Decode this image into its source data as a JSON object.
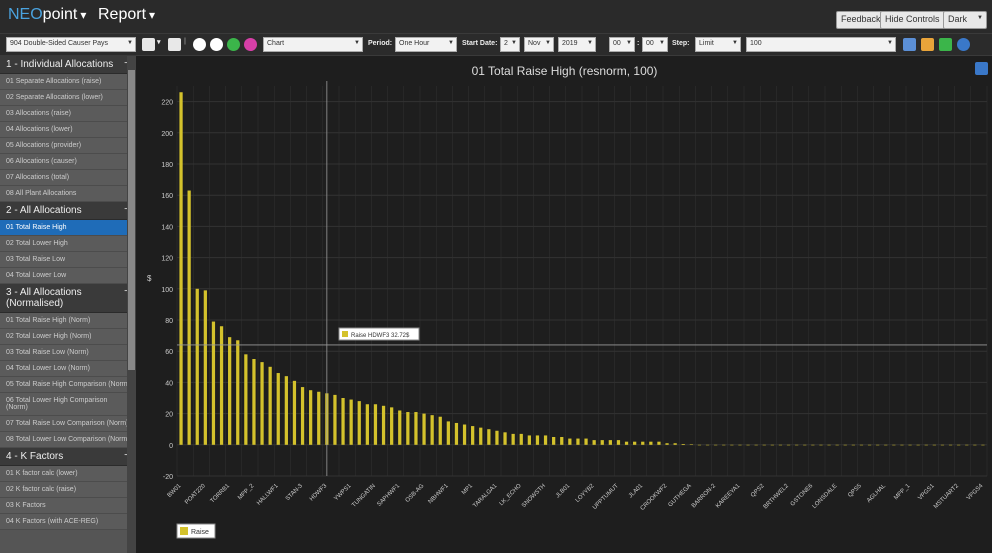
{
  "app": {
    "brand_prefix": "NEO",
    "brand_suffix": "point",
    "menu": "Report"
  },
  "topbar": {
    "feedback": "Feedback",
    "hide_controls": "Hide Controls",
    "theme": "Dark"
  },
  "toolbar": {
    "report_select": "904 Double-Sided Causer Pays",
    "view_select": "Chart",
    "period_label": "Period:",
    "period_value": "One Hour",
    "start_label": "Start Date:",
    "day": "2",
    "month": "Nov",
    "year": "2019",
    "hour": "00",
    "minute": "00",
    "step_label": "Step:",
    "step_value": "Limit",
    "limit_value": "100"
  },
  "sidebar": {
    "sections": [
      {
        "title": "1 - Individual Allocations",
        "items": [
          "01 Separate Allocations (raise)",
          "02 Separate Allocations (lower)",
          "03 Allocations (raise)",
          "04 Allocations (lower)",
          "05 Allocations (provider)",
          "06 Allocations (causer)",
          "07 Allocations (total)",
          "08 All Plant Allocations"
        ]
      },
      {
        "title": "2 - All Allocations",
        "items": [
          "01 Total Raise High",
          "02 Total Lower High",
          "03 Total Raise Low",
          "04 Total Lower Low"
        ]
      },
      {
        "title": "3 - All Allocations (Normalised)",
        "items": [
          "01 Total Raise High (Norm)",
          "02 Total Lower High (Norm)",
          "03 Total Raise Low (Norm)",
          "04 Total Lower Low (Norm)",
          "05 Total Raise High Comparison (Norm)",
          "06 Total Lower High Comparison (Norm)",
          "07 Total Raise Low Comparison (Norm)",
          "08 Total Lower Low Comparison (Norm)"
        ]
      },
      {
        "title": "4 - K Factors",
        "items": [
          "01 K factor calc (lower)",
          "02 K factor calc (raise)",
          "03 K Factors",
          "04 K Factors (with ACE-REG)"
        ]
      }
    ],
    "active_item": "01 Total Raise High"
  },
  "colors": {
    "bar": "#d4c22c",
    "accent": "#1f6cb8",
    "grid": "#333333"
  },
  "chart_data": {
    "type": "bar",
    "title": "01 Total Raise High (resnorm, 100)",
    "ylabel": "$",
    "ylim": [
      -20,
      230
    ],
    "yticks": [
      -20,
      0,
      20,
      40,
      60,
      80,
      100,
      120,
      140,
      160,
      180,
      200,
      220
    ],
    "legend": "Raise",
    "tooltip": {
      "series": "Raise",
      "category": "HDWF3",
      "value": "32.72$"
    },
    "categories_labeled": [
      "BW01",
      "POAT220",
      "TORRB1",
      "MPP_2",
      "HALLWF1",
      "STAN-3",
      "HDWF3",
      "YWPS1",
      "TUNGATIN",
      "SAPHWF1",
      "OSB-AG",
      "NBHWF1",
      "MP1",
      "TARALGA1",
      "LK_ECHO",
      "SNOWSTH",
      "JLB01",
      "LOYYB2",
      "UPPTUMUT",
      "JLA01",
      "CROOKWF2",
      "GUTHEGA",
      "BARRON-2",
      "KAREEYA1",
      "QPS2",
      "BRTHWEL2",
      "GSTONE6",
      "LONSDALE",
      "QPS5",
      "AGLHAL",
      "MPP_1",
      "VPGS1",
      "MSTUART2",
      "VPGS4"
    ],
    "values": [
      226,
      163,
      100,
      99,
      79,
      76,
      69,
      67,
      58,
      55,
      53,
      50,
      46,
      44,
      41,
      37,
      35,
      34,
      33,
      32,
      30,
      29,
      28,
      26,
      26,
      25,
      24,
      22,
      21,
      21,
      20,
      19,
      18,
      15,
      14,
      13,
      12,
      11,
      10,
      9,
      8,
      7,
      7,
      6,
      6,
      6,
      5,
      5,
      4,
      4,
      4,
      3,
      3,
      3,
      3,
      2,
      2,
      2,
      2,
      2,
      1,
      1,
      0.5,
      0.3,
      0,
      0,
      0,
      0,
      0,
      0,
      0,
      0,
      0,
      0,
      0,
      0,
      0,
      0,
      0,
      0,
      0,
      0,
      0,
      0,
      0,
      0,
      0,
      0,
      0,
      0,
      0,
      0,
      0,
      0,
      0,
      0,
      0,
      0,
      0,
      0
    ]
  }
}
